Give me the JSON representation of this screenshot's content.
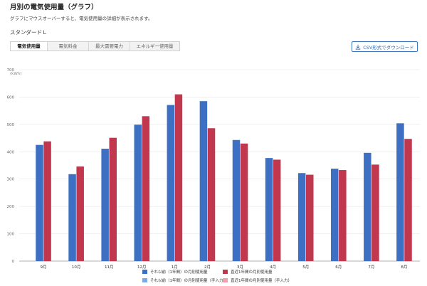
{
  "page": {
    "title": "月別の電気使用量（グラフ）",
    "description": "グラフにマウスオーバーすると、電気使用量の詳細が表示されます。",
    "plan": "スタンダードＬ"
  },
  "tabs": [
    {
      "label": "電気使用量",
      "active": true
    },
    {
      "label": "電気料金",
      "active": false
    },
    {
      "label": "最大需要電力",
      "active": false
    },
    {
      "label": "エネルギー使用量",
      "active": false
    }
  ],
  "csv_button": {
    "label": "CSV形式でダウンロード",
    "icon": "download-icon"
  },
  "colors": {
    "prev_year": "#3d6fc2",
    "recent_year": "#c0374e",
    "prev_year_manual": "#7fa8e0",
    "recent_year_manual": "#f0a0b0"
  },
  "chart_data": {
    "type": "bar",
    "unit_label": "(kWh)",
    "ylim": [
      0,
      700
    ],
    "yticks": [
      0,
      100,
      200,
      300,
      400,
      500,
      600,
      700
    ],
    "grid": true,
    "legend_position": "bottom",
    "categories": [
      "9月",
      "10月",
      "11月",
      "12月",
      "1月",
      "2月",
      "3月",
      "4月",
      "5月",
      "6月",
      "7月",
      "8月"
    ],
    "series": [
      {
        "name": "それ以前（1年間）の月別使用量",
        "values": [
          425,
          318,
          411,
          499,
          571,
          585,
          443,
          377,
          322,
          338,
          396,
          504
        ]
      },
      {
        "name": "直近1年間の月別使用量",
        "values": [
          438,
          346,
          451,
          530,
          610,
          486,
          430,
          371,
          316,
          333,
          353,
          447
        ]
      }
    ],
    "legend": [
      {
        "label": "それ以前（1年間）の月別使用量",
        "color": "#3d6fc2"
      },
      {
        "label": "直近1年間の月別使用量",
        "color": "#c0374e"
      },
      {
        "label": "それ以前（1年間）の月別使用量（手入力）",
        "color": "#7fa8e0"
      },
      {
        "label": "直近1年間の月別使用量（手入力）",
        "color": "#f0a0b0"
      }
    ]
  }
}
